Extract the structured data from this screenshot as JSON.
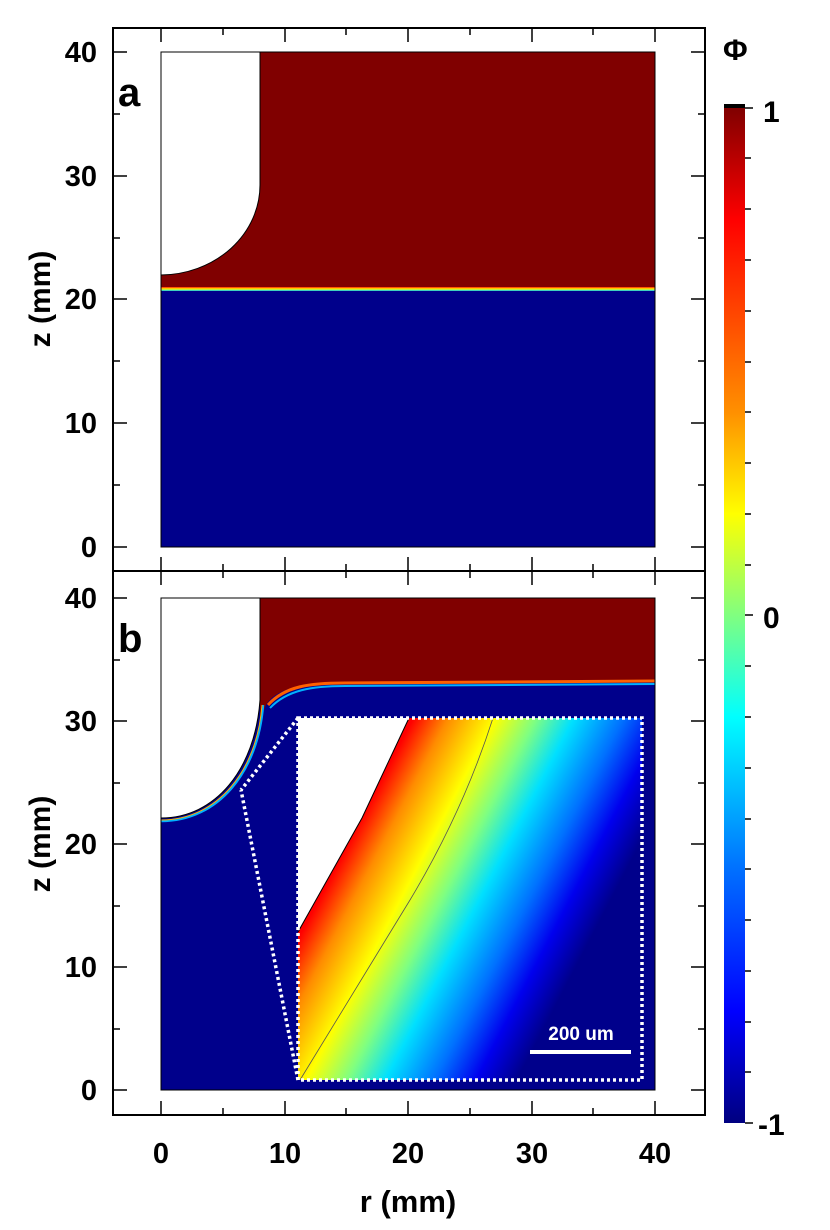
{
  "panels": [
    {
      "label": "a",
      "ylabel": "z (mm)",
      "yticks": [
        "0",
        "10",
        "20",
        "30",
        "40"
      ]
    },
    {
      "label": "b",
      "ylabel": "z (mm)",
      "yticks": [
        "0",
        "10",
        "20",
        "30",
        "40"
      ]
    }
  ],
  "xaxis": {
    "label": "r (mm)",
    "ticks": [
      "0",
      "10",
      "20",
      "30",
      "40"
    ]
  },
  "colorbar": {
    "title": "Φ",
    "ticks": [
      "1",
      "0",
      "-1"
    ],
    "colors": [
      "#800000",
      "#ff0000",
      "#ff8000",
      "#ffff00",
      "#80ff80",
      "#00ffff",
      "#0080ff",
      "#0000ff",
      "#000080"
    ]
  },
  "inset": {
    "scale_label": "200 um"
  },
  "colors": {
    "dark_red": "#800000",
    "dark_blue": "#00008b"
  }
}
